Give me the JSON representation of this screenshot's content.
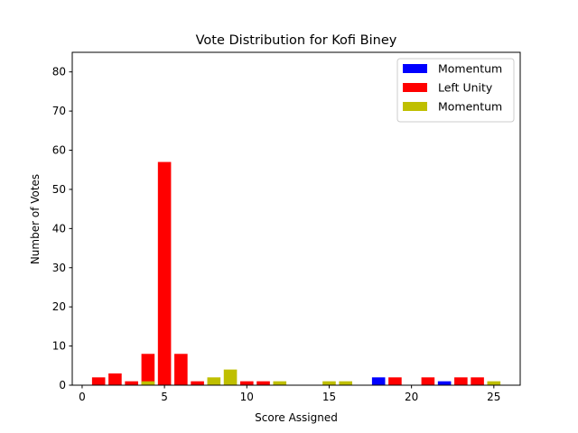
{
  "chart_data": {
    "type": "bar",
    "title": "Vote Distribution for Kofi Biney",
    "xlabel": "Score Assigned",
    "ylabel": "Number of Votes",
    "xlim": [
      -0.6,
      26.6
    ],
    "ylim": [
      0,
      85
    ],
    "x_ticks": [
      0,
      5,
      10,
      15,
      20,
      25
    ],
    "y_ticks": [
      0,
      10,
      20,
      30,
      40,
      50,
      60,
      70,
      80
    ],
    "grid": false,
    "legend_position": "top-right",
    "series": [
      {
        "name": "Momentum",
        "color": "#0000ff",
        "points": [
          {
            "x": 18,
            "y": 2
          },
          {
            "x": 22,
            "y": 1
          }
        ]
      },
      {
        "name": "Left Unity",
        "color": "#ff0000",
        "points": [
          {
            "x": 1,
            "y": 2
          },
          {
            "x": 2,
            "y": 3
          },
          {
            "x": 3,
            "y": 1
          },
          {
            "x": 4,
            "y": 8
          },
          {
            "x": 5,
            "y": 57
          },
          {
            "x": 6,
            "y": 8
          },
          {
            "x": 7,
            "y": 1
          },
          {
            "x": 10,
            "y": 1
          },
          {
            "x": 11,
            "y": 1
          },
          {
            "x": 19,
            "y": 2
          },
          {
            "x": 21,
            "y": 2
          },
          {
            "x": 23,
            "y": 2
          },
          {
            "x": 24,
            "y": 2
          }
        ]
      },
      {
        "name": "Momentum",
        "color": "#bfbf00",
        "points": [
          {
            "x": 4,
            "y": 1
          },
          {
            "x": 8,
            "y": 2
          },
          {
            "x": 9,
            "y": 4
          },
          {
            "x": 12,
            "y": 1
          },
          {
            "x": 15,
            "y": 1
          },
          {
            "x": 16,
            "y": 1
          },
          {
            "x": 25,
            "y": 1
          }
        ]
      }
    ]
  }
}
